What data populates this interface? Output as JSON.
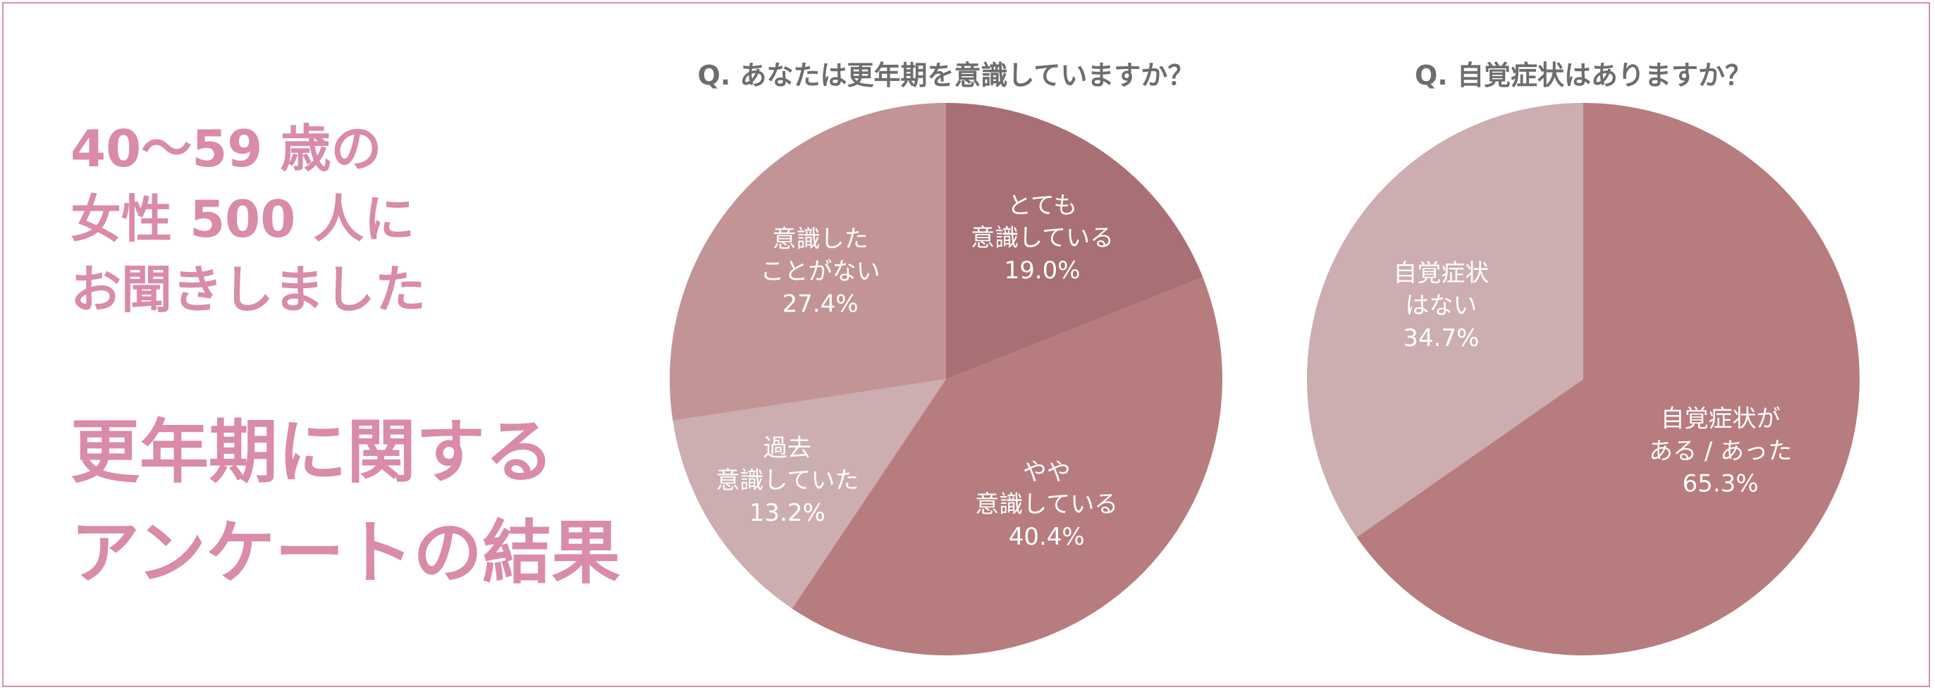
{
  "headline": {
    "line1": "40〜59 歳の",
    "line2": "女性 500 人に",
    "line3": "お聞きしました",
    "title1": "更年期に関する",
    "title2": "アンケートの結果"
  },
  "colors": {
    "frame": "#d98fae",
    "headline": "#d98ba9",
    "question": "#6d6d6d",
    "label": "#ffffff"
  },
  "chart_data": [
    {
      "type": "pie",
      "title": "Q. あなたは更年期を意識していますか？",
      "slices": [
        {
          "label": [
            "とても",
            "意識している"
          ],
          "value": 19.0,
          "value_label": "19.0%",
          "color": "#a87074"
        },
        {
          "label": [
            "やや",
            "意識している"
          ],
          "value": 40.4,
          "value_label": "40.4%",
          "color": "#b77c7e"
        },
        {
          "label": [
            "過去",
            "意識していた"
          ],
          "value": 13.2,
          "value_label": "13.2%",
          "color": "#ccadb0"
        },
        {
          "label": [
            "意識した",
            "ことがない"
          ],
          "value": 27.4,
          "value_label": "27.4%",
          "color": "#c39496"
        }
      ]
    },
    {
      "type": "pie",
      "title": "Q. 自覚症状はありますか？",
      "slices": [
        {
          "label": [
            "自覚症状が",
            "ある / あった"
          ],
          "value": 65.3,
          "value_label": "65.3%",
          "color": "#b77c7e"
        },
        {
          "label": [
            "自覚症状",
            "はない"
          ],
          "value": 34.7,
          "value_label": "34.7%",
          "color": "#ccadb0"
        }
      ]
    }
  ]
}
